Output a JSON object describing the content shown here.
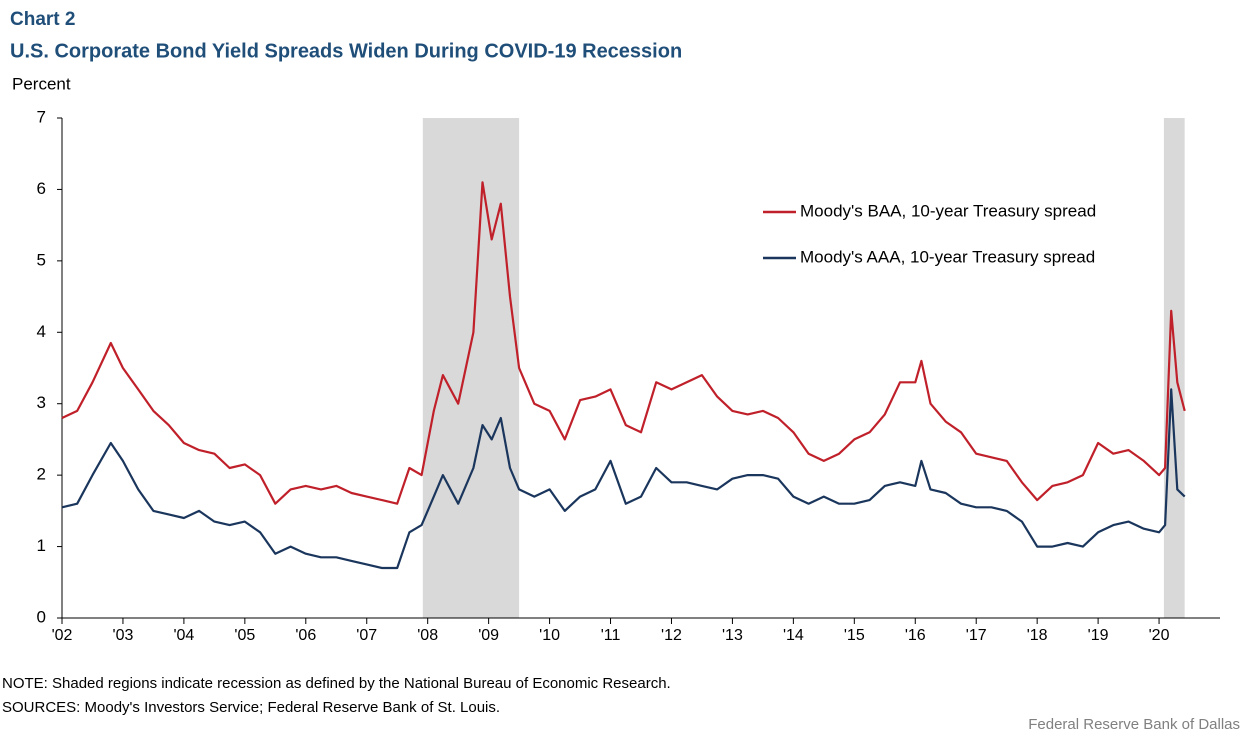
{
  "chart_data": {
    "type": "line",
    "label": "Chart 2",
    "title": "U.S. Corporate Bond Yield Spreads Widen During COVID-19 Recession",
    "y_label": "Percent",
    "note": "NOTE: Shaded regions indicate recession as defined by the National Bureau of Economic Research.",
    "source": "SOURCES: Moody's Investors Service; Federal Reserve Bank of St. Louis.",
    "credit": "Federal Reserve  Bank of Dallas",
    "legend": "upper right",
    "recessions": [
      {
        "start": 2007.92,
        "end": 2009.5
      },
      {
        "start": 2020.08,
        "end": 2020.42
      }
    ],
    "recession_color": "#d9d9d9",
    "xlim": [
      2002,
      2021
    ],
    "xticks": [
      {
        "value": 2002,
        "label": "'02"
      },
      {
        "value": 2003,
        "label": "'03"
      },
      {
        "value": 2004,
        "label": "'04"
      },
      {
        "value": 2005,
        "label": "'05"
      },
      {
        "value": 2006,
        "label": "'06"
      },
      {
        "value": 2007,
        "label": "'07"
      },
      {
        "value": 2008,
        "label": "'08"
      },
      {
        "value": 2009,
        "label": "'09"
      },
      {
        "value": 2010,
        "label": "'10"
      },
      {
        "value": 2011,
        "label": "'11"
      },
      {
        "value": 2012,
        "label": "'12"
      },
      {
        "value": 2013,
        "label": "'13"
      },
      {
        "value": 2014,
        "label": "'14"
      },
      {
        "value": 2015,
        "label": "'15"
      },
      {
        "value": 2016,
        "label": "'16"
      },
      {
        "value": 2017,
        "label": "'17"
      },
      {
        "value": 2018,
        "label": "'18"
      },
      {
        "value": 2019,
        "label": "'19"
      },
      {
        "value": 2020,
        "label": "'20"
      }
    ],
    "ylim": [
      0,
      7
    ],
    "yticks": [
      0,
      1,
      2,
      3,
      4,
      5,
      6,
      7
    ],
    "x": [
      2002.0,
      2002.25,
      2002.5,
      2002.8,
      2003.0,
      2003.25,
      2003.5,
      2003.75,
      2004.0,
      2004.25,
      2004.5,
      2004.75,
      2005.0,
      2005.25,
      2005.5,
      2005.75,
      2006.0,
      2006.25,
      2006.5,
      2006.75,
      2007.0,
      2007.25,
      2007.5,
      2007.7,
      2007.9,
      2008.1,
      2008.25,
      2008.5,
      2008.75,
      2008.9,
      2009.05,
      2009.2,
      2009.35,
      2009.5,
      2009.75,
      2010.0,
      2010.25,
      2010.5,
      2010.75,
      2011.0,
      2011.25,
      2011.5,
      2011.75,
      2012.0,
      2012.25,
      2012.5,
      2012.75,
      2013.0,
      2013.25,
      2013.5,
      2013.75,
      2014.0,
      2014.25,
      2014.5,
      2014.75,
      2015.0,
      2015.25,
      2015.5,
      2015.75,
      2016.0,
      2016.1,
      2016.25,
      2016.5,
      2016.75,
      2017.0,
      2017.25,
      2017.5,
      2017.75,
      2018.0,
      2018.25,
      2018.5,
      2018.75,
      2019.0,
      2019.25,
      2019.5,
      2019.75,
      2020.0,
      2020.1,
      2020.2,
      2020.3,
      2020.42
    ],
    "series": [
      {
        "name": "Moody's BAA, 10-year Treasury spread",
        "color": "#c0202a",
        "values": [
          2.8,
          2.9,
          3.3,
          3.85,
          3.5,
          3.2,
          2.9,
          2.7,
          2.45,
          2.35,
          2.3,
          2.1,
          2.15,
          2.0,
          1.6,
          1.8,
          1.85,
          1.8,
          1.85,
          1.75,
          1.7,
          1.65,
          1.6,
          2.1,
          2.0,
          2.9,
          3.4,
          3.0,
          4.0,
          6.1,
          5.3,
          5.8,
          4.5,
          3.5,
          3.0,
          2.9,
          2.5,
          3.05,
          3.1,
          3.2,
          2.7,
          2.6,
          3.3,
          3.2,
          3.3,
          3.4,
          3.1,
          2.9,
          2.85,
          2.9,
          2.8,
          2.6,
          2.3,
          2.2,
          2.3,
          2.5,
          2.6,
          2.85,
          3.3,
          3.3,
          3.6,
          3.0,
          2.75,
          2.6,
          2.3,
          2.25,
          2.2,
          1.9,
          1.65,
          1.85,
          1.9,
          2.0,
          2.45,
          2.3,
          2.35,
          2.2,
          2.0,
          2.1,
          4.3,
          3.3,
          2.9
        ]
      },
      {
        "name": "Moody's AAA, 10-year Treasury spread",
        "color": "#1b365d",
        "values": [
          1.55,
          1.6,
          2.0,
          2.45,
          2.2,
          1.8,
          1.5,
          1.45,
          1.4,
          1.5,
          1.35,
          1.3,
          1.35,
          1.2,
          0.9,
          1.0,
          0.9,
          0.85,
          0.85,
          0.8,
          0.75,
          0.7,
          0.7,
          1.2,
          1.3,
          1.7,
          2.0,
          1.6,
          2.1,
          2.7,
          2.5,
          2.8,
          2.1,
          1.8,
          1.7,
          1.8,
          1.5,
          1.7,
          1.8,
          2.2,
          1.6,
          1.7,
          2.1,
          1.9,
          1.9,
          1.85,
          1.8,
          1.95,
          2.0,
          2.0,
          1.95,
          1.7,
          1.6,
          1.7,
          1.6,
          1.6,
          1.65,
          1.85,
          1.9,
          1.85,
          2.2,
          1.8,
          1.75,
          1.6,
          1.55,
          1.55,
          1.5,
          1.35,
          1.0,
          1.0,
          1.05,
          1.0,
          1.2,
          1.3,
          1.35,
          1.25,
          1.2,
          1.3,
          3.2,
          1.8,
          1.7
        ]
      }
    ]
  }
}
